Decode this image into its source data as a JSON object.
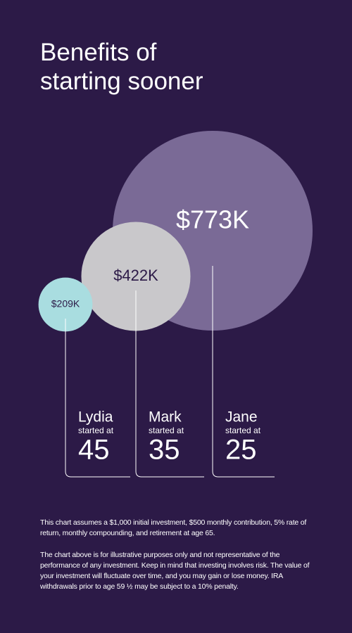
{
  "chart_data": {
    "type": "bubble",
    "title": "Benefits of starting sooner",
    "categories": [
      "Lydia",
      "Mark",
      "Jane"
    ],
    "values": [
      209000,
      422000,
      773000
    ],
    "value_labels": [
      "$209K",
      "$422K",
      "$773K"
    ],
    "colors": [
      "#a9dde0",
      "#c9c8cb",
      "#7a6a96"
    ],
    "sublabel": "started at",
    "start_ages": [
      45,
      35,
      25
    ],
    "notes": [
      "This chart assumes a $1,000 initial investment, $500 monthly contribution, 5% rate of return, monthly compounding, and retirement at age 65.",
      "The chart above is for illustrative purposes only and not representative of the performance of any investment. Keep in mind that investing involves risk. The value of your investment will fluctuate over time, and you may gain or lose money. IRA withdrawals prior to age 59 ½ may be subject to a 10% penalty."
    ]
  }
}
